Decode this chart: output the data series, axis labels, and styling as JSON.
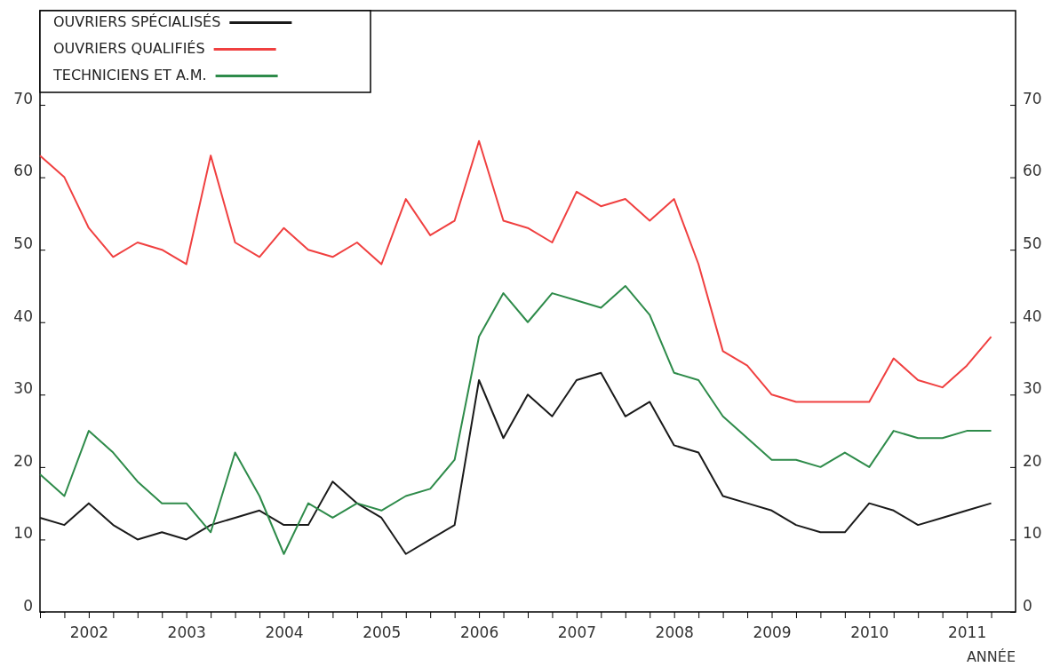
{
  "chart_data": {
    "type": "line",
    "xlabel": "ANNÉE",
    "categories": [
      null,
      null,
      "2002",
      null,
      null,
      null,
      "2003",
      null,
      null,
      null,
      "2004",
      null,
      null,
      null,
      "2005",
      null,
      null,
      null,
      "2006",
      null,
      null,
      null,
      "2007",
      null,
      null,
      null,
      "2008",
      null,
      null,
      null,
      "2009",
      null,
      null,
      null,
      "2010",
      null,
      null,
      null,
      "2011",
      null
    ],
    "series": [
      {
        "name": "OUVRIERS SPÉCIALISÉS",
        "color": "#1a1a1a",
        "values": [
          13,
          12,
          15,
          12,
          10,
          11,
          10,
          12,
          13,
          14,
          12,
          12,
          18,
          15,
          13,
          8,
          10,
          12,
          32,
          24,
          30,
          27,
          32,
          33,
          27,
          29,
          23,
          22,
          16,
          15,
          14,
          12,
          11,
          11,
          15,
          14,
          12,
          13,
          14,
          15
        ]
      },
      {
        "name": "OUVRIERS QUALIFIÉS",
        "color": "#f04040",
        "values": [
          63,
          60,
          53,
          49,
          51,
          50,
          48,
          63,
          51,
          49,
          53,
          50,
          49,
          51,
          48,
          57,
          52,
          54,
          65,
          54,
          53,
          51,
          58,
          56,
          57,
          54,
          57,
          48,
          36,
          34,
          30,
          29,
          29,
          29,
          29,
          35,
          32,
          31,
          34,
          38
        ]
      },
      {
        "name": "TECHNICIENS ET A.M.",
        "color": "#2e8b4a",
        "values": [
          19,
          16,
          25,
          22,
          18,
          15,
          15,
          11,
          22,
          16,
          8,
          15,
          13,
          15,
          14,
          16,
          17,
          21,
          38,
          44,
          40,
          44,
          43,
          42,
          45,
          41,
          33,
          32,
          27,
          24,
          21,
          21,
          20,
          22,
          20,
          25,
          24,
          24,
          25,
          25
        ]
      }
    ],
    "ylim": [
      0,
      83
    ],
    "yticks": [
      0,
      10,
      20,
      30,
      40,
      50,
      60,
      70
    ],
    "y2lim": [
      0,
      83
    ],
    "y2ticks": [
      0,
      10,
      20,
      30,
      40,
      50,
      60,
      70
    ],
    "grid": false,
    "legend": "top left",
    "marker": "none",
    "line_style": "solid"
  }
}
